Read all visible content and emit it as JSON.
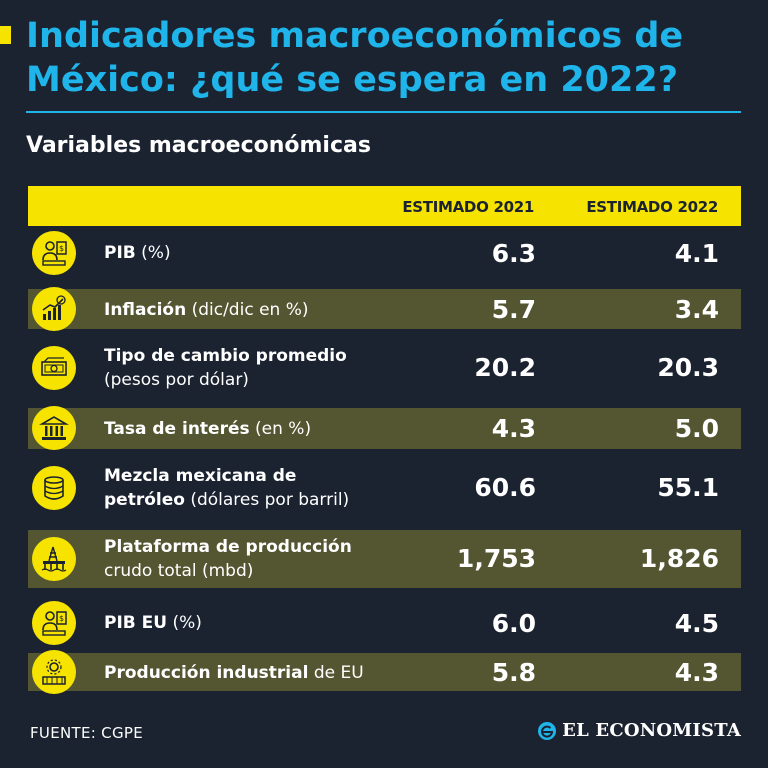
{
  "title": "Indicadores macroeconómicos de México: ¿qué se espera en 2022?",
  "subtitle": "Variables macroeconómicas",
  "columns": {
    "col_2021": "ESTIMADO 2021",
    "col_2022": "ESTIMADO 2022"
  },
  "rows": [
    {
      "icon": "economist-icon",
      "label_bold": "PIB",
      "label_light": " (%)",
      "label_line2": "",
      "v2021": "6.3",
      "v2022": "4.1"
    },
    {
      "icon": "growth-chart-icon",
      "label_bold": "Inflación",
      "label_light": " (dic/dic en %)",
      "label_line2": "",
      "v2021": "5.7",
      "v2022": "3.4"
    },
    {
      "icon": "banknote-icon",
      "label_bold": "Tipo de cambio promedio",
      "label_light": "",
      "label_line2": "(pesos por dólar)",
      "v2021": "20.2",
      "v2022": "20.3"
    },
    {
      "icon": "bank-building-icon",
      "label_bold": "Tasa de interés",
      "label_light": " (en %)",
      "label_line2": "",
      "v2021": "4.3",
      "v2022": "5.0"
    },
    {
      "icon": "oil-barrel-icon",
      "label_bold": "Mezcla mexicana de",
      "label_light": "",
      "label_line2_bold": "petróleo",
      "label_line2": " (dólares por barril)",
      "v2021": "60.6",
      "v2022": "55.1"
    },
    {
      "icon": "oil-platform-icon",
      "label_bold": "Plataforma de producción",
      "label_light": "",
      "label_line2": "crudo total (mbd)",
      "v2021": "1,753",
      "v2022": "1,826"
    },
    {
      "icon": "economist-icon",
      "label_bold": "PIB EU",
      "label_light": " (%)",
      "label_line2": "",
      "v2021": "6.0",
      "v2022": "4.5"
    },
    {
      "icon": "factory-gear-icon",
      "label_bold": "Producción industrial",
      "label_light": " de EU",
      "label_line2": "",
      "v2021": "5.8",
      "v2022": "4.3"
    }
  ],
  "footer": {
    "source": "FUENTE: CGPE",
    "brand": "EL ECONOMISTA"
  },
  "colors": {
    "accent": "#f6e400",
    "title": "#1fb5ea",
    "background": "#1b2230",
    "band": "#545632"
  }
}
